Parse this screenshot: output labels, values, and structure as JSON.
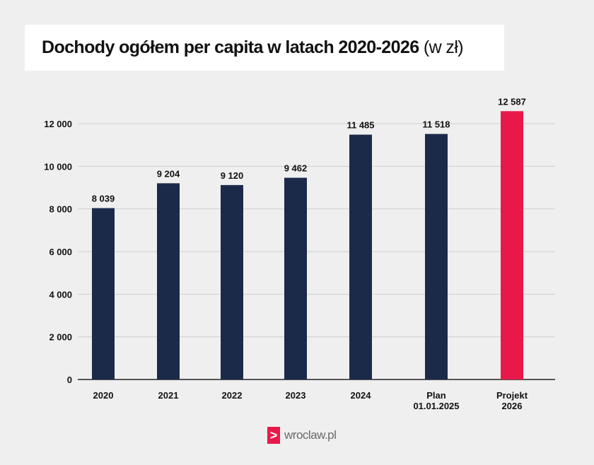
{
  "chart_data": {
    "type": "bar",
    "title": "Dochody ogółem per capita w latach 2020-2026",
    "title_unit": "(w zł)",
    "categories": [
      [
        "2020"
      ],
      [
        "2021"
      ],
      [
        "2022"
      ],
      [
        "2023"
      ],
      [
        "2024"
      ],
      [
        "Plan",
        "01.01.2025"
      ],
      [
        "Projekt",
        "2026"
      ]
    ],
    "values": [
      8039,
      9204,
      9120,
      9462,
      11485,
      11518,
      12587
    ],
    "data_labels": [
      "8 039",
      "9 204",
      "9 120",
      "9 462",
      "11 485",
      "11 518",
      "12 587"
    ],
    "ylim": [
      0,
      12000
    ],
    "yticks": [
      0,
      2000,
      4000,
      6000,
      8000,
      10000,
      12000
    ],
    "ytick_labels": [
      "0",
      "2 000",
      "4 000",
      "6 000",
      "8 000",
      "10 000",
      "12 000"
    ],
    "grid": true,
    "legend": "none",
    "colors": [
      "#1c2a4a",
      "#1c2a4a",
      "#1c2a4a",
      "#1c2a4a",
      "#1c2a4a",
      "#1c2a4a",
      "#e8194a"
    ]
  },
  "footer": {
    "logo_text": "wroclaw.pl",
    "logo_glyph": ">"
  }
}
